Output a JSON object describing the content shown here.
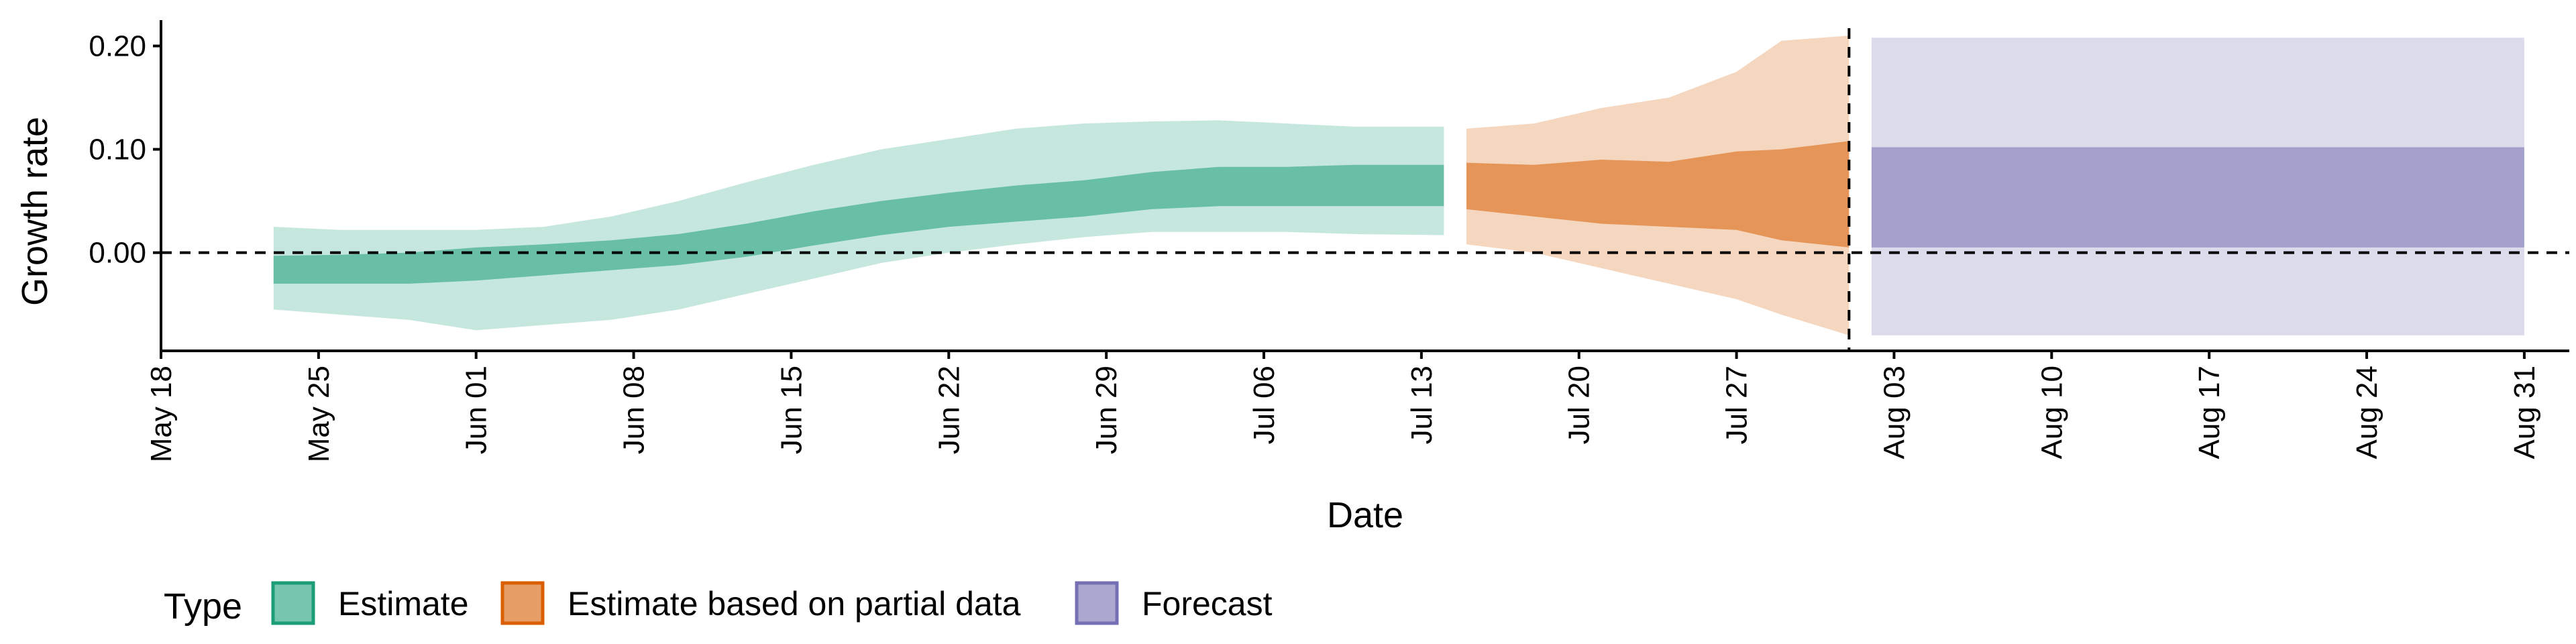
{
  "chart_data": {
    "type": "area",
    "xlabel": "Date",
    "ylabel": "Growth rate",
    "xlim": [
      "2020-05-18",
      "2020-09-02"
    ],
    "ylim": [
      -0.095,
      0.225
    ],
    "x_ticks": [
      "2020-05-18",
      "2020-05-25",
      "2020-06-01",
      "2020-06-08",
      "2020-06-15",
      "2020-06-22",
      "2020-06-29",
      "2020-07-06",
      "2020-07-13",
      "2020-07-20",
      "2020-07-27",
      "2020-08-03",
      "2020-08-10",
      "2020-08-17",
      "2020-08-24",
      "2020-08-31"
    ],
    "x_tick_labels": [
      "May 18",
      "May 25",
      "Jun 01",
      "Jun 08",
      "Jun 15",
      "Jun 22",
      "Jun 29",
      "Jul 06",
      "Jul 13",
      "Jul 20",
      "Jul 27",
      "Aug 03",
      "Aug 10",
      "Aug 17",
      "Aug 24",
      "Aug 31"
    ],
    "y_ticks": [
      0,
      0.1,
      0.2
    ],
    "y_tick_labels": [
      "0.00",
      "0.10",
      "0.20"
    ],
    "reference_lines": {
      "horizontal_y": 0,
      "vertical_date": "2020-08-01"
    },
    "legend": {
      "title": "Type",
      "position": "bottom-left"
    },
    "series": [
      {
        "name": "Estimate",
        "color": "#1b9e77",
        "x": [
          "2020-05-23",
          "2020-05-26",
          "2020-05-29",
          "2020-06-01",
          "2020-06-04",
          "2020-06-07",
          "2020-06-10",
          "2020-06-13",
          "2020-06-16",
          "2020-06-19",
          "2020-06-22",
          "2020-06-25",
          "2020-06-28",
          "2020-07-01",
          "2020-07-04",
          "2020-07-07",
          "2020-07-10",
          "2020-07-14"
        ],
        "lower_90": [
          -0.055,
          -0.06,
          -0.065,
          -0.075,
          -0.07,
          -0.065,
          -0.055,
          -0.04,
          -0.025,
          -0.01,
          0.0,
          0.008,
          0.015,
          0.02,
          0.02,
          0.02,
          0.018,
          0.017
        ],
        "lower_50": [
          -0.03,
          -0.03,
          -0.03,
          -0.027,
          -0.022,
          -0.017,
          -0.012,
          -0.004,
          0.007,
          0.017,
          0.025,
          0.03,
          0.035,
          0.042,
          0.045,
          0.045,
          0.045,
          0.045
        ],
        "upper_50": [
          -0.003,
          -0.002,
          0.0,
          0.005,
          0.008,
          0.012,
          0.018,
          0.028,
          0.04,
          0.05,
          0.058,
          0.065,
          0.07,
          0.078,
          0.083,
          0.083,
          0.085,
          0.085
        ],
        "upper_90": [
          0.025,
          0.022,
          0.022,
          0.022,
          0.025,
          0.035,
          0.05,
          0.068,
          0.085,
          0.1,
          0.11,
          0.12,
          0.125,
          0.127,
          0.128,
          0.125,
          0.122,
          0.122
        ]
      },
      {
        "name": "Estimate based on partial data",
        "color": "#d95f02",
        "x": [
          "2020-07-15",
          "2020-07-18",
          "2020-07-21",
          "2020-07-24",
          "2020-07-27",
          "2020-07-29",
          "2020-08-01"
        ],
        "lower_90": [
          0.008,
          0.0,
          -0.015,
          -0.03,
          -0.045,
          -0.06,
          -0.08
        ],
        "lower_50": [
          0.042,
          0.035,
          0.028,
          0.025,
          0.022,
          0.012,
          0.005
        ],
        "upper_50": [
          0.087,
          0.085,
          0.09,
          0.088,
          0.098,
          0.1,
          0.108
        ],
        "upper_90": [
          0.12,
          0.125,
          0.14,
          0.15,
          0.175,
          0.205,
          0.21
        ]
      },
      {
        "name": "Forecast",
        "color": "#7570b3",
        "x": [
          "2020-08-02",
          "2020-08-31"
        ],
        "lower_90": [
          -0.08,
          -0.08
        ],
        "lower_50": [
          0.005,
          0.005
        ],
        "upper_50": [
          0.102,
          0.102
        ],
        "upper_90": [
          0.208,
          0.208
        ]
      }
    ]
  }
}
